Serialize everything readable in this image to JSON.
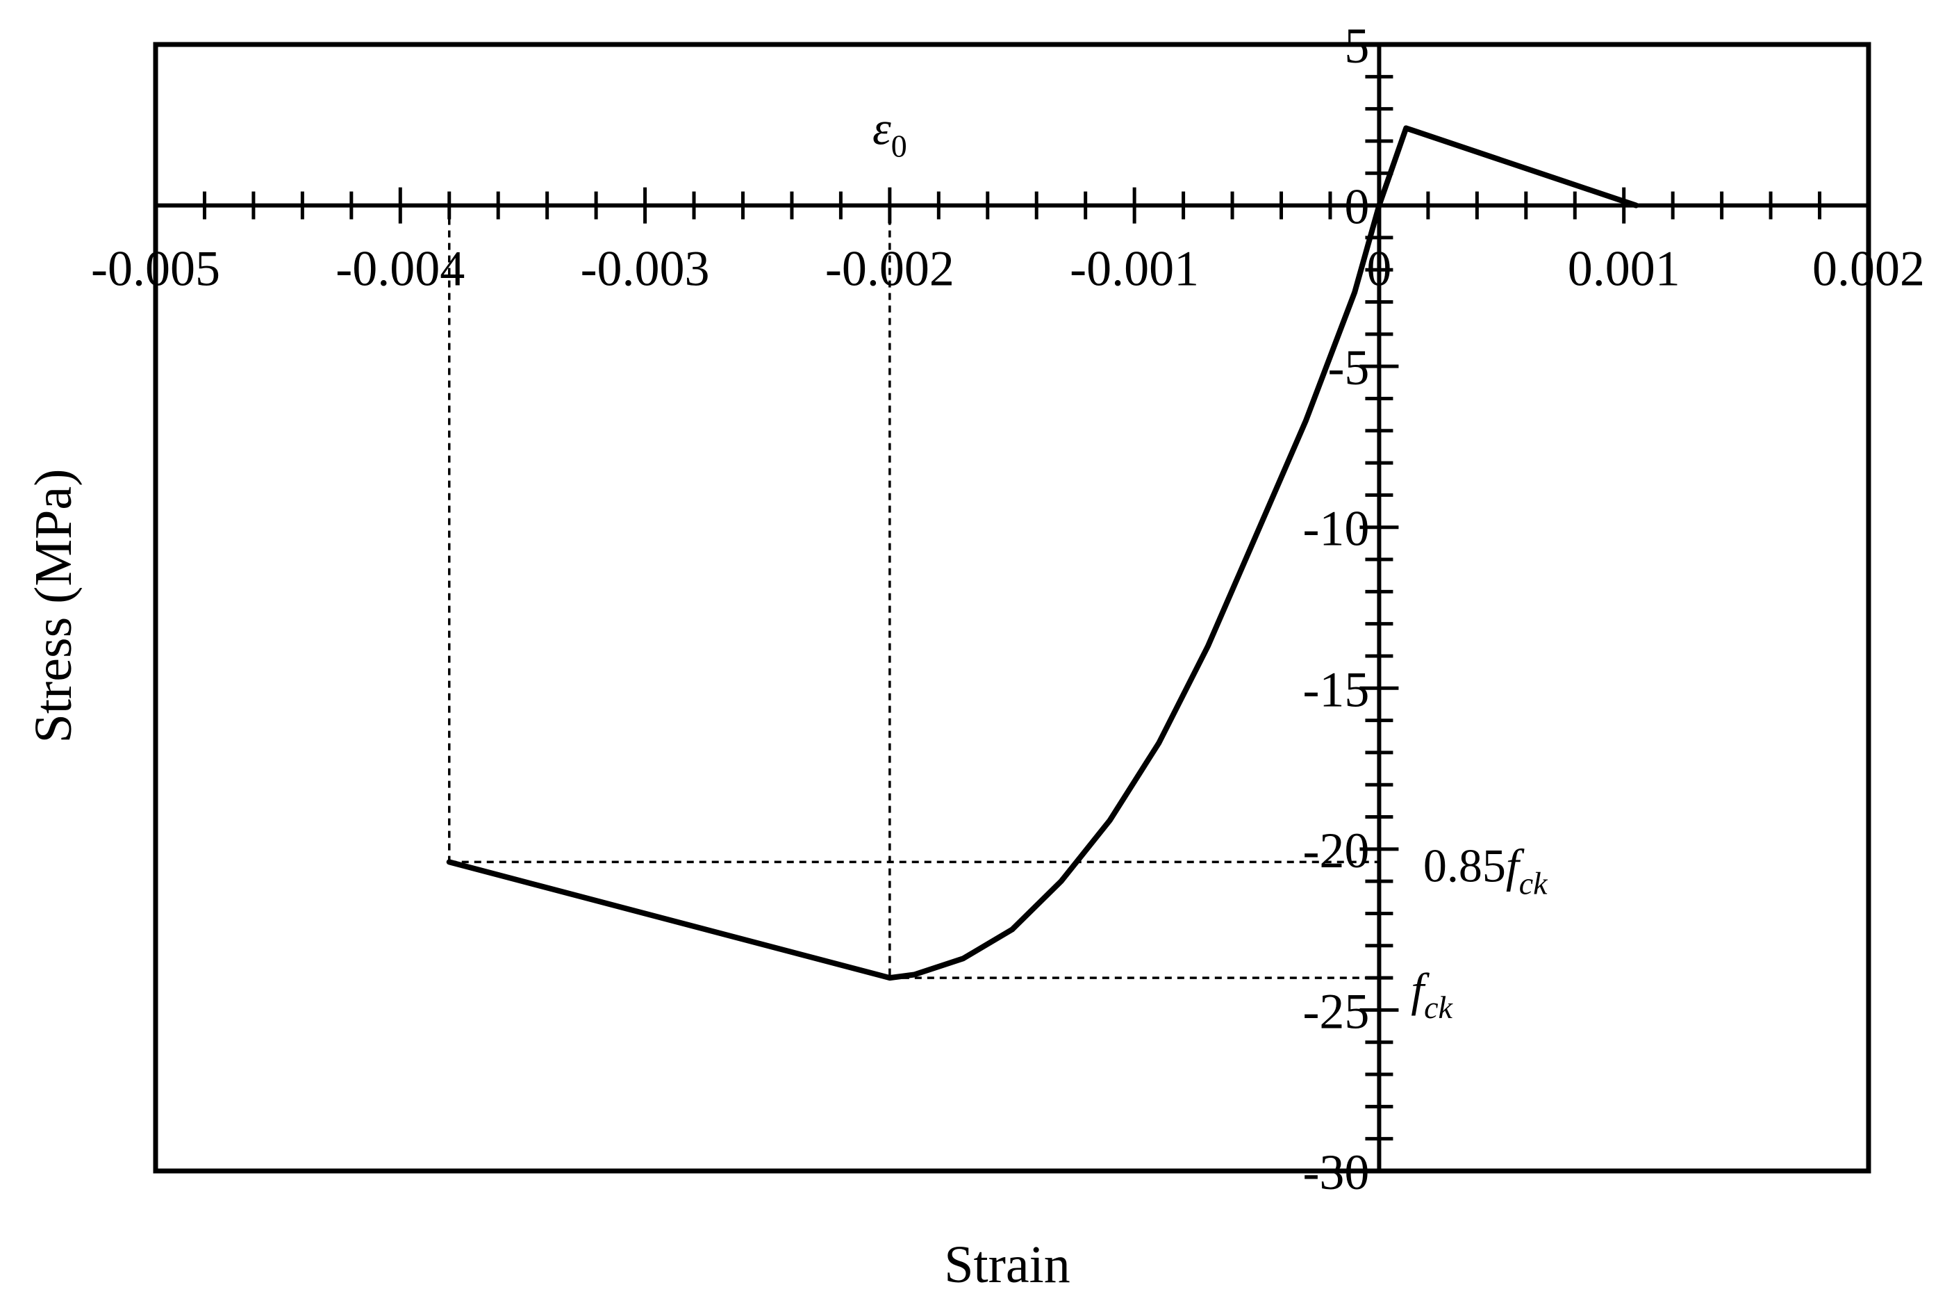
{
  "chart_data": {
    "type": "line",
    "title": "",
    "xlabel": "Strain",
    "ylabel": "Stress (MPa)",
    "xlim": [
      -0.005,
      0.002
    ],
    "ylim": [
      -30,
      5
    ],
    "x_ticks": [
      -0.005,
      -0.004,
      -0.003,
      -0.002,
      -0.001,
      0,
      0.001,
      0.002
    ],
    "x_tick_labels": [
      "-0.005",
      "-0.004",
      "-0.003",
      "-0.002",
      "-0.001",
      "0",
      "0.001",
      "0.002"
    ],
    "y_ticks": [
      5,
      0,
      -5,
      -10,
      -15,
      -20,
      -25,
      -30
    ],
    "y_tick_labels": [
      "5",
      "0",
      "-5",
      "-10",
      "-15",
      "-20",
      "-25",
      "-30"
    ],
    "x_minor_tick_step": 0.0002,
    "y_minor_tick_step": 1,
    "grid": false,
    "legend": "none",
    "series": [
      {
        "x": [
          -0.0038,
          -0.002,
          -0.0019,
          -0.0017,
          -0.0015,
          -0.0013,
          -0.0011,
          -0.0009,
          -0.0007,
          -0.0005,
          -0.0003,
          -0.0001,
          0.0,
          0.00011,
          0.00105
        ],
        "y": [
          -20.4,
          -24.0,
          -23.9,
          -23.4,
          -22.5,
          -21.0,
          -19.1,
          -16.7,
          -13.7,
          -10.2,
          -6.7,
          -2.7,
          0.0,
          2.4,
          0.0
        ],
        "color": "#000000"
      }
    ],
    "reference_lines": [
      {
        "from": [
          -0.0038,
          0
        ],
        "to": [
          -0.0038,
          -20.4
        ],
        "style": "dashed"
      },
      {
        "from": [
          -0.0038,
          -20.4
        ],
        "to": [
          0,
          -20.4
        ],
        "style": "dashed"
      },
      {
        "from": [
          -0.002,
          0
        ],
        "to": [
          -0.002,
          -24.0
        ],
        "style": "dashed"
      },
      {
        "from": [
          -0.002,
          -24.0
        ],
        "to": [
          0,
          -24.0
        ],
        "style": "dashed"
      }
    ],
    "annotations": {
      "eps0": {
        "symbol": "ε",
        "sub": "0",
        "x": -0.002,
        "y": 1.9
      },
      "f085": {
        "prefix": "0.85",
        "symbol": "f",
        "sub": "ck",
        "x": 0.00018,
        "y": -20.4
      },
      "fck": {
        "symbol": "f",
        "sub": "ck",
        "x": 0.00013,
        "y": -24.0
      }
    }
  }
}
